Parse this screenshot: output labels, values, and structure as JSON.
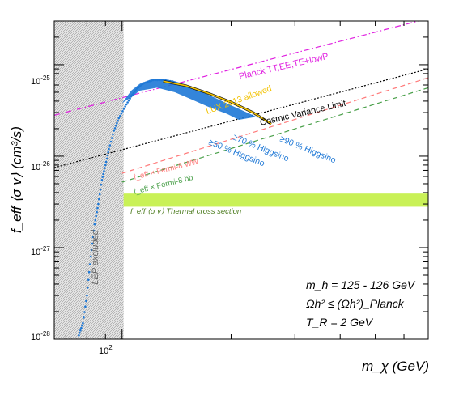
{
  "chart_data": {
    "type": "scatter",
    "x_scale": "log",
    "y_scale": "log",
    "xlim": [
      65,
      700
    ],
    "ylim": [
      1e-28,
      3e-25
    ],
    "xlabel": "m_χ (GeV)",
    "ylabel": "f_eff ⟨σ v⟩ (cm³/s)",
    "x_tick_labels": [
      {
        "value": 100,
        "label": "10"
      }
    ],
    "y_tick_labels": [
      {
        "value": 1e-28,
        "label": "10"
      },
      {
        "value": 1e-27,
        "label": "10"
      },
      {
        "value": 1e-26,
        "label": "10"
      },
      {
        "value": 1e-25,
        "label": "10"
      }
    ],
    "y_tick_exponents": [
      "-28",
      "-27",
      "-26",
      "-25"
    ],
    "x_tick_exponents": [
      "2"
    ],
    "excluded_band": {
      "label": "LEP excluded",
      "x": [
        65,
        101
      ]
    },
    "thermal_band": {
      "label": "f_eff ⟨σ v⟩  Thermal cross section",
      "y": [
        2.8e-27,
        3.9e-27
      ],
      "color": "#bfee3a"
    },
    "lines": [
      {
        "name": "Planck TT,EE,TE+lowP",
        "color": "#e020e0",
        "dash": "dashdot",
        "points": [
          [
            65,
            2.8e-26
          ],
          [
            700,
            3.2e-25
          ]
        ]
      },
      {
        "name": "Cosmic Variance Limit",
        "color": "#000000",
        "dash": "dotted",
        "points": [
          [
            65,
            7.5e-27
          ],
          [
            700,
            9e-26
          ]
        ]
      },
      {
        "name": "f_eff × Fermi-8 WW",
        "color": "#ff7a7a",
        "dash": "dashed",
        "points": [
          [
            100,
            6.5e-27
          ],
          [
            700,
            7.2e-26
          ]
        ]
      },
      {
        "name": "f_eff × Fermi-8 bb",
        "color": "#4aa04a",
        "dash": "dashed",
        "points": [
          [
            100,
            5.2e-27
          ],
          [
            700,
            5.6e-26
          ]
        ]
      }
    ],
    "scan": {
      "color": "#1e78d6",
      "rise": [
        [
          76,
          1.1e-28
        ],
        [
          78,
          1.5e-28
        ],
        [
          80,
          3e-28
        ],
        [
          82,
          8e-28
        ],
        [
          84,
          1.8e-27
        ],
        [
          86,
          3e-27
        ],
        [
          88,
          5.5e-27
        ],
        [
          90,
          8e-27
        ],
        [
          92,
          1.2e-26
        ],
        [
          95,
          1.9e-26
        ],
        [
          98,
          2.6e-26
        ],
        [
          102,
          3.5e-26
        ],
        [
          106,
          4.5e-26
        ],
        [
          110,
          5.5e-26
        ],
        [
          115,
          6.3e-26
        ],
        [
          122,
          6.8e-26
        ],
        [
          130,
          6.8e-26
        ],
        [
          140,
          6.5e-26
        ]
      ],
      "band_upper": [
        [
          100,
          3.8e-26
        ],
        [
          106,
          5.2e-26
        ],
        [
          112,
          6.2e-26
        ],
        [
          120,
          6.9e-26
        ],
        [
          130,
          7e-26
        ],
        [
          140,
          6.6e-26
        ],
        [
          155,
          5.8e-26
        ],
        [
          175,
          4.6e-26
        ],
        [
          200,
          3.6e-26
        ],
        [
          230,
          2.8e-26
        ],
        [
          260,
          2.2e-26
        ]
      ],
      "band_lower": [
        [
          260,
          2.2e-26
        ],
        [
          235,
          2.7e-26
        ],
        [
          210,
          2.5e-26
        ],
        [
          195,
          2.9e-26
        ],
        [
          175,
          3.4e-26
        ],
        [
          155,
          4.2e-26
        ],
        [
          140,
          5e-26
        ],
        [
          125,
          5.6e-26
        ],
        [
          112,
          5.2e-26
        ],
        [
          105,
          4.3e-26
        ],
        [
          100,
          3.8e-26
        ]
      ],
      "allowed_curve": {
        "name": "LUX 2013 allowed",
        "color": "#f2c200",
        "points": [
          [
            130,
            6.6e-26
          ],
          [
            150,
            5.9e-26
          ],
          [
            175,
            4.8e-26
          ],
          [
            200,
            3.9e-26
          ],
          [
            230,
            3e-26
          ],
          [
            258,
            2.25e-26
          ]
        ]
      }
    },
    "higgsino_labels": [
      "≥50 % Higgsino",
      "≥70 % Higgsino",
      "≥90 % Higgsino"
    ],
    "annotations": [
      "m_h = 125 - 126 GeV",
      "Ωh² ≤ (Ωh²)_Planck",
      "T_R = 2 GeV"
    ]
  }
}
